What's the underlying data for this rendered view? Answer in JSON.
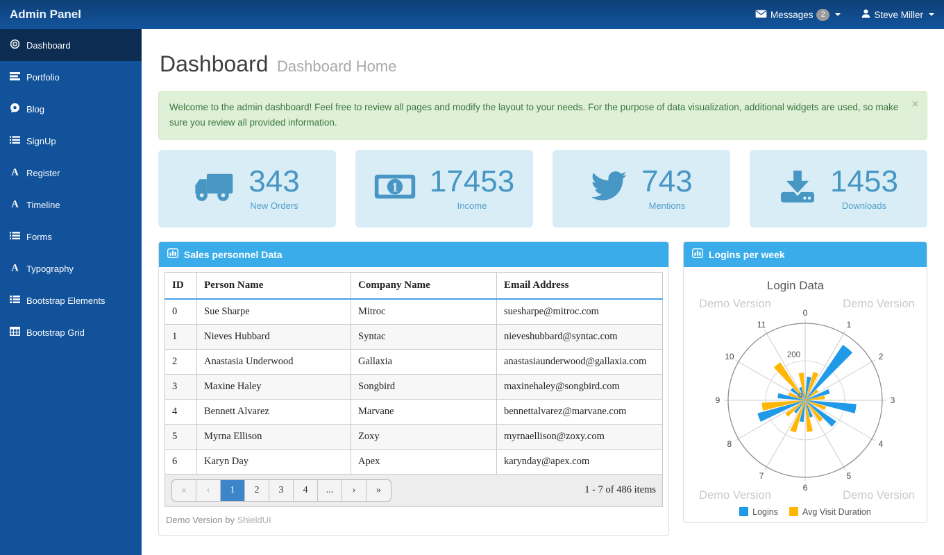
{
  "colors": {
    "navbar_top": "#0d4076",
    "navbar_bottom": "#13549d",
    "sidebar": "#11529b",
    "sidebar_active": "#0c2c52",
    "panel_header": "#39ace9",
    "stat_accent": "#4796c3",
    "stat_bg": "#d9edf7",
    "pager_active": "#3d85c8",
    "alert_bg": "#dff0d8",
    "alert_text": "#3c763d"
  },
  "navbar": {
    "brand": "Admin Panel",
    "messages_label": "Messages",
    "messages_count": "2",
    "user_name": "Steve Miller"
  },
  "sidebar": {
    "items": [
      {
        "icon": "dashboard-icon",
        "label": "Dashboard",
        "active": true
      },
      {
        "icon": "portfolio-icon",
        "label": "Portfolio",
        "active": false
      },
      {
        "icon": "blog-icon",
        "label": "Blog",
        "active": false
      },
      {
        "icon": "tasks-icon",
        "label": "SignUp",
        "active": false
      },
      {
        "icon": "font-icon",
        "label": "Register",
        "active": false
      },
      {
        "icon": "font-icon",
        "label": "Timeline",
        "active": false
      },
      {
        "icon": "tasks-icon",
        "label": "Forms",
        "active": false
      },
      {
        "icon": "font-icon",
        "label": "Typography",
        "active": false
      },
      {
        "icon": "th-list-icon",
        "label": "Bootstrap Elements",
        "active": false
      },
      {
        "icon": "grid-icon",
        "label": "Bootstrap Grid",
        "active": false
      }
    ]
  },
  "page": {
    "title": "Dashboard",
    "subtitle": "Dashboard Home"
  },
  "alert": {
    "text": "Welcome to the admin dashboard! Feel free to review all pages and modify the layout to your needs. For the purpose of data visualization, additional widgets are used, so make sure you review all provided information.",
    "close": "×"
  },
  "stats": [
    {
      "icon": "truck-icon",
      "value": "343",
      "label": "New Orders"
    },
    {
      "icon": "money-icon",
      "value": "17453",
      "label": "Income"
    },
    {
      "icon": "twitter-icon",
      "value": "743",
      "label": "Mentions"
    },
    {
      "icon": "download-icon",
      "value": "1453",
      "label": "Downloads"
    }
  ],
  "sales_panel": {
    "title": "Sales personnel Data",
    "columns": [
      "ID",
      "Person Name",
      "Company Name",
      "Email Address"
    ],
    "rows": [
      [
        "0",
        "Sue Sharpe",
        "Mitroc",
        "suesharpe@mitroc.com"
      ],
      [
        "1",
        "Nieves Hubbard",
        "Syntac",
        "nieveshubbard@syntac.com"
      ],
      [
        "2",
        "Anastasia Underwood",
        "Gallaxia",
        "anastasiaunderwood@gallaxia.com"
      ],
      [
        "3",
        "Maxine Haley",
        "Songbird",
        "maxinehaley@songbird.com"
      ],
      [
        "4",
        "Bennett Alvarez",
        "Marvane",
        "bennettalvarez@marvane.com"
      ],
      [
        "5",
        "Myrna Ellison",
        "Zoxy",
        "myrnaellison@zoxy.com"
      ],
      [
        "6",
        "Karyn Day",
        "Apex",
        "karynday@apex.com"
      ]
    ],
    "pager": {
      "buttons": [
        {
          "label": "«",
          "state": "disabled"
        },
        {
          "label": "‹",
          "state": "disabled"
        },
        {
          "label": "1",
          "state": "active"
        },
        {
          "label": "2",
          "state": ""
        },
        {
          "label": "3",
          "state": ""
        },
        {
          "label": "4",
          "state": ""
        },
        {
          "label": "...",
          "state": ""
        },
        {
          "label": "›",
          "state": ""
        },
        {
          "label": "»",
          "state": ""
        }
      ],
      "info": "1 - 7 of 486 items"
    },
    "footnote_text": "Demo Version by",
    "footnote_brand": "ShieldUI"
  },
  "chart_panel": {
    "title": "Logins per week"
  },
  "chart_data": {
    "type": "polar-bar",
    "title": "Login Data",
    "watermark": "Demo Version",
    "categories": [
      "0",
      "1",
      "2",
      "3",
      "4",
      "5",
      "6",
      "7",
      "8",
      "9",
      "10",
      "11"
    ],
    "series": [
      {
        "name": "Logins",
        "color": "#1f9ae8",
        "values": [
          120,
          340,
          130,
          260,
          190,
          90,
          110,
          80,
          250,
          140,
          90,
          70
        ]
      },
      {
        "name": "Avg Visit Duration",
        "color": "#ffb606",
        "values": [
          150,
          80,
          100,
          110,
          130,
          160,
          170,
          120,
          220,
          90,
          230,
          140
        ]
      }
    ],
    "radial_axis": {
      "min": 0,
      "max": 390,
      "tick_labels": [
        "0",
        "200"
      ],
      "tick_values": [
        0,
        200
      ]
    },
    "grid": true,
    "legend_position": "bottom"
  }
}
